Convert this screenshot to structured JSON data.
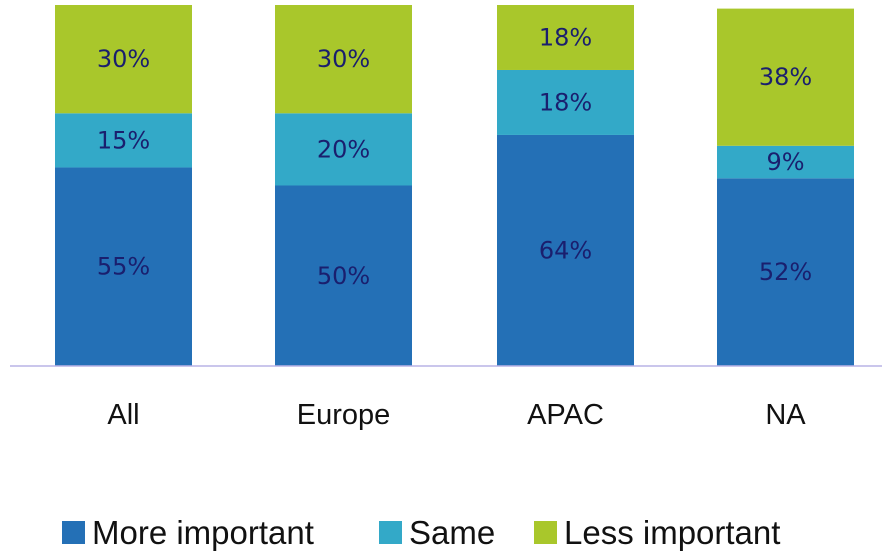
{
  "chart_data": {
    "type": "bar",
    "stacked": true,
    "categories": [
      "All",
      "Europe",
      "APAC",
      "NA"
    ],
    "series": [
      {
        "name": "More important",
        "values": [
          55,
          50,
          64,
          52
        ],
        "labels": [
          "55%",
          "50%",
          "64%",
          "52%"
        ],
        "color": "#2470b6",
        "label_color": "#1a1f6e"
      },
      {
        "name": "Same",
        "values": [
          15,
          20,
          18,
          9
        ],
        "labels": [
          "15%",
          "20%",
          "18%",
          "9%"
        ],
        "color": "#33a9c8",
        "label_color": "#1a1f6e"
      },
      {
        "name": "Less important",
        "values": [
          30,
          30,
          18,
          38
        ],
        "labels": [
          "30%",
          "30%",
          "18%",
          "38%"
        ],
        "color": "#a9c72b",
        "label_color": "#1a1f6e"
      }
    ],
    "ylim": [
      0,
      100
    ],
    "grid": false,
    "legend_position": "bottom",
    "axis_color": "#b9b3e6"
  }
}
